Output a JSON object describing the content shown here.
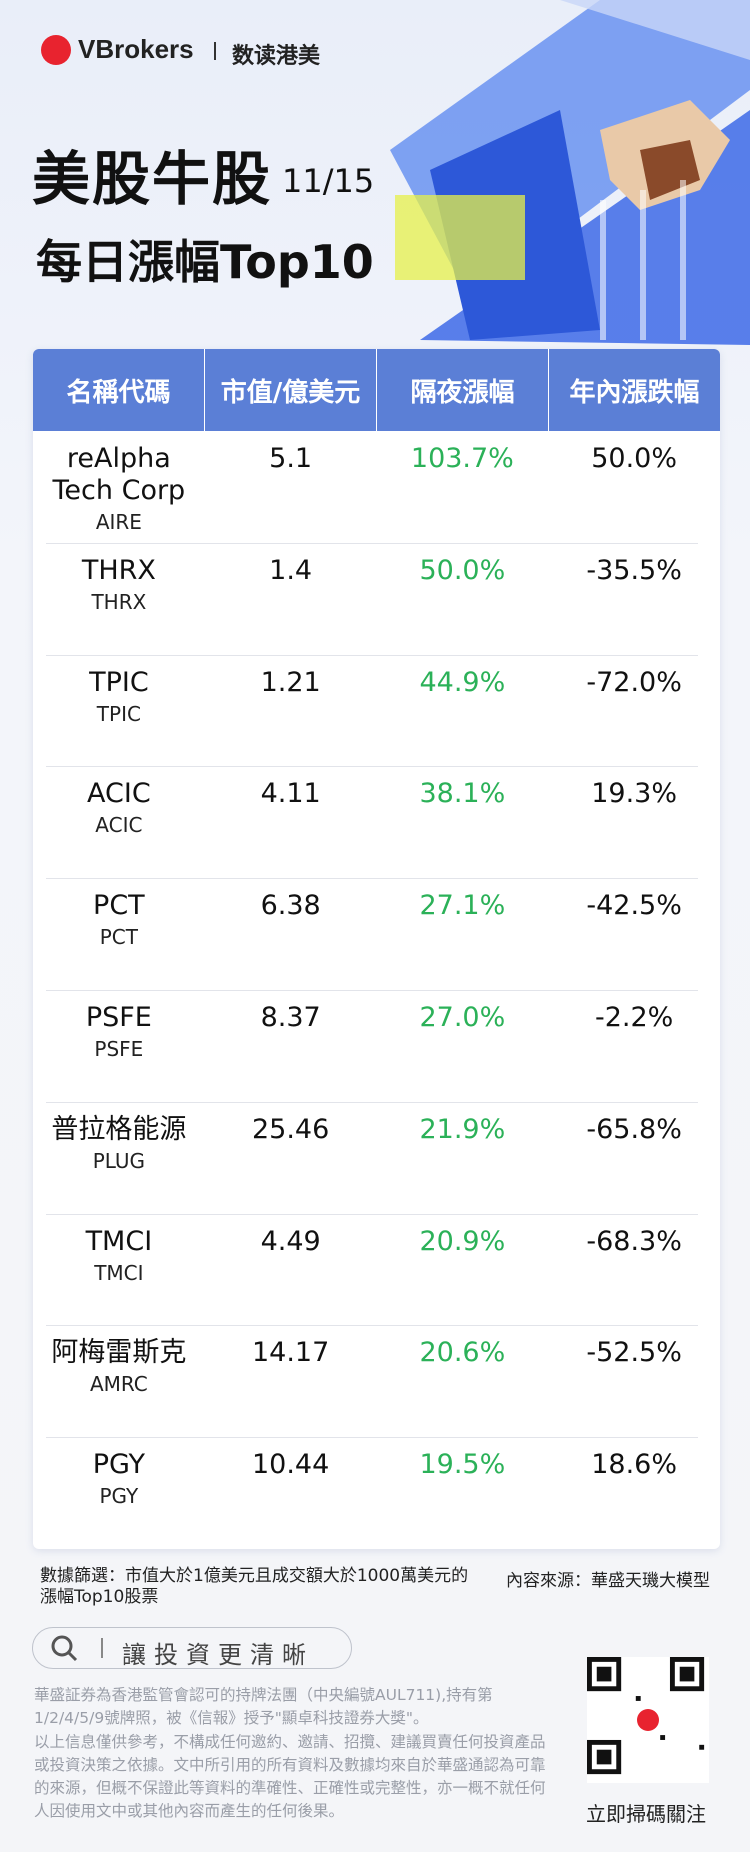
{
  "header": {
    "brand": "VBrokers",
    "brand_sub": "数读港美",
    "title": "美股牛股",
    "date": "11/15",
    "subtitle": "每日漲幅Top10"
  },
  "table": {
    "columns": [
      "名稱代碼",
      "市值/億美元",
      "隔夜漲幅",
      "年內漲跌幅"
    ],
    "rows": [
      [
        "reAlpha Tech Corp",
        "AIRE",
        "5.1",
        "103.7%",
        "50.0%"
      ],
      [
        "THRX",
        "THRX",
        "1.4",
        "50.0%",
        "-35.5%"
      ],
      [
        "TPIC",
        "TPIC",
        "1.21",
        "44.9%",
        "-72.0%"
      ],
      [
        "ACIC",
        "ACIC",
        "4.11",
        "38.1%",
        "19.3%"
      ],
      [
        "PCT",
        "PCT",
        "6.38",
        "27.1%",
        "-42.5%"
      ],
      [
        "PSFE",
        "PSFE",
        "8.37",
        "27.0%",
        "-2.2%"
      ],
      [
        "普拉格能源",
        "PLUG",
        "25.46",
        "21.9%",
        "-65.8%"
      ],
      [
        "TMCI",
        "TMCI",
        "4.49",
        "20.9%",
        "-68.3%"
      ],
      [
        "阿梅雷斯克",
        "AMRC",
        "14.17",
        "20.6%",
        "-52.5%"
      ],
      [
        "PGY",
        "PGY",
        "10.44",
        "19.5%",
        "18.6%"
      ]
    ]
  },
  "footer": {
    "filter_note": "數據篩選：市值大於1億美元且成交額大於1000萬美元的漲幅Top10股票",
    "source_note": "內容來源：華盛天璣大模型",
    "search_text": "讓投資更清晰",
    "disclaimer": [
      "華盛証券為香港監管會認可的持牌法團（中央編號AUL711),持有第1/2/4/5/9號牌照，被《信報》授予\"顯卓科技證券大獎\"。",
      "以上信息僅供參考，不構成任何邀約、邀請、招攬、建議買賣任何投資產品或投資決策之依據。文中所引用的所有資料及數據均來自於華盛通認為可靠的來源，但概不保證此等資料的準確性、正確性或完整性，亦一概不就任何人因使用文中或其他內容而產生的任何後果。"
    ],
    "qr_label": "立即掃碼關注"
  }
}
